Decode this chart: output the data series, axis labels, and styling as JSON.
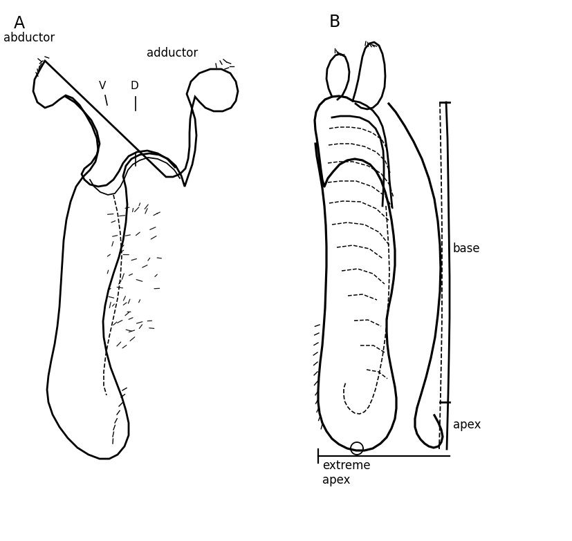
{
  "figsize": [
    8.28,
    7.83
  ],
  "dpi": 100,
  "background": "white",
  "label_A": "A",
  "label_B": "B",
  "label_abductor": "abductor",
  "label_adductor": "adductor",
  "label_V": "V",
  "label_D": "D",
  "label_base": "base",
  "label_apex": "apex",
  "label_extreme_apex": "extreme\napex",
  "lw_main": 2.0,
  "lw_inner": 1.5,
  "lw_dash": 1.2,
  "linecolor": "black"
}
